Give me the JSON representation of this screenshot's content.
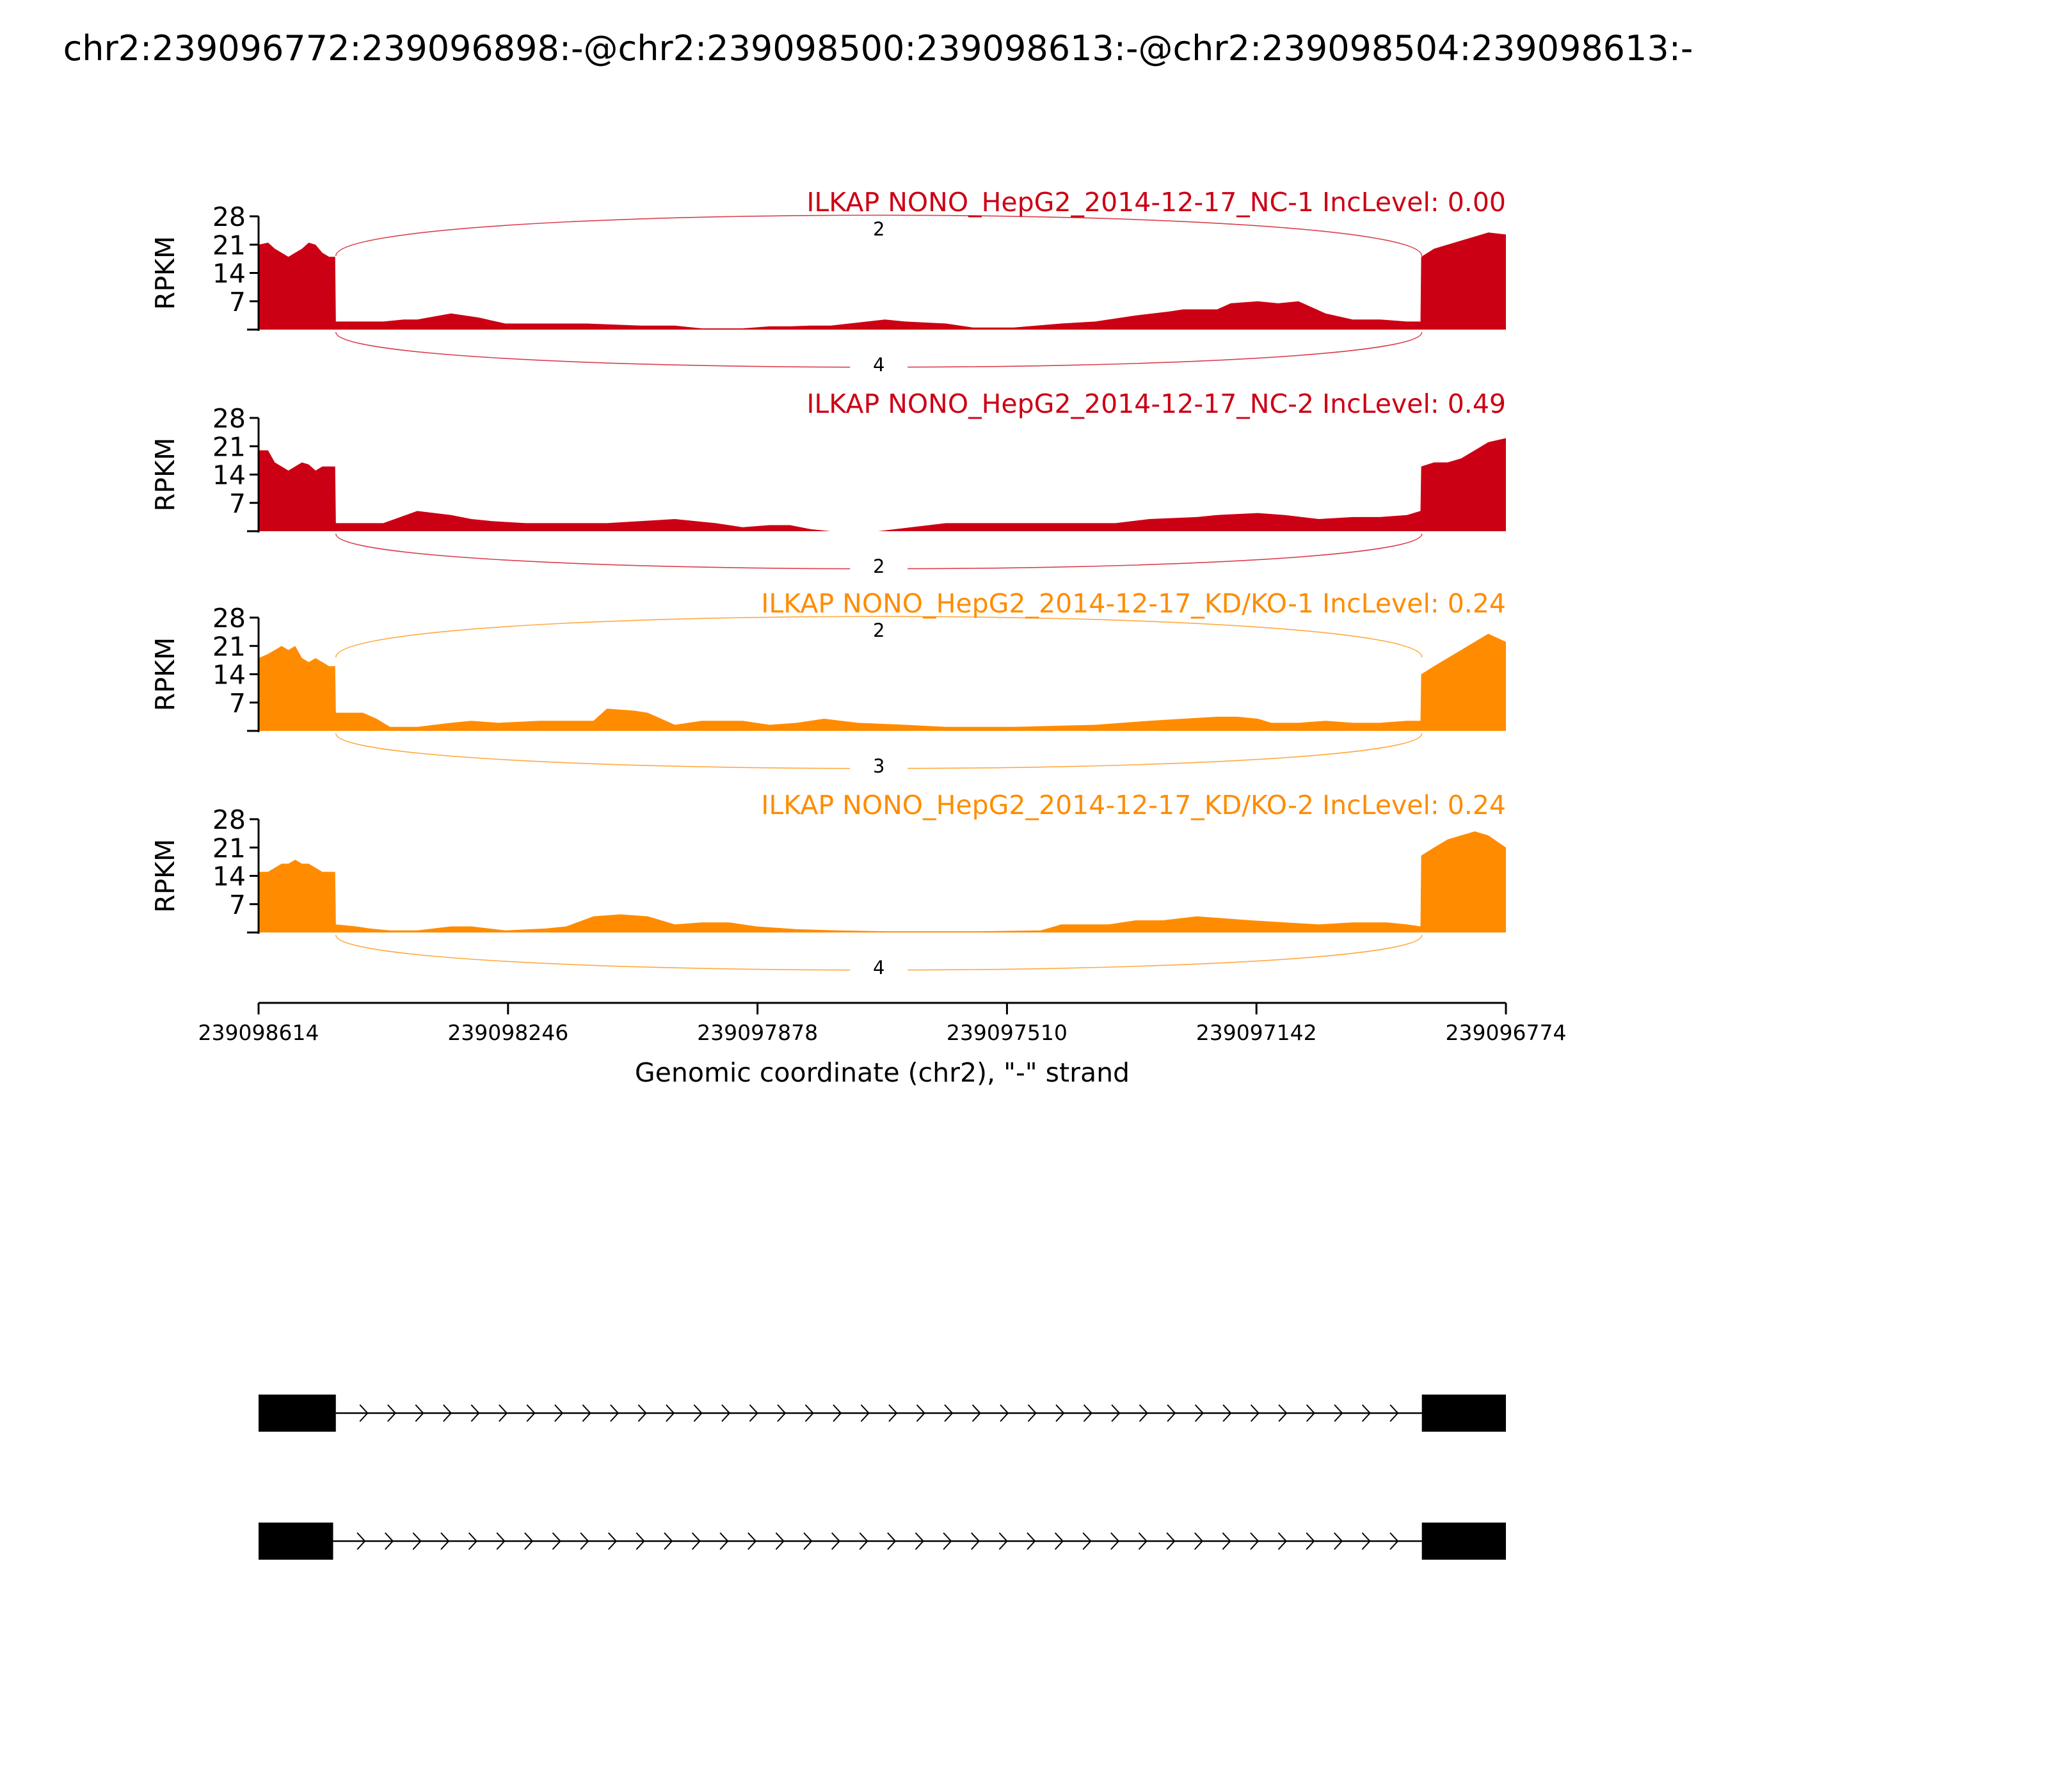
{
  "title": "chr2:239096772:239096898:-@chr2:239098500:239098613:-@chr2:239098504:239098613:-",
  "chart_data": {
    "type": "area",
    "title": "chr2:239096772:239096898:-@chr2:239098500:239098613:-@chr2:239098504:239098613:-",
    "xlabel": "Genomic coordinate (chr2), \"-\" strand",
    "ylabel": "RPKM",
    "xlim": [
      239098614,
      239096774
    ],
    "x_reversed": true,
    "x_ticks": [
      "239098614",
      "239098246",
      "239097878",
      "239097510",
      "239097142",
      "239096774"
    ],
    "y_ticks": [
      "28",
      "21",
      "14",
      "7"
    ],
    "ylim": [
      0,
      28
    ],
    "colors": {
      "NC": "#cc0014",
      "KD": "#ff8c00",
      "gene": "#000000"
    },
    "series": [
      {
        "name": "ILKAP NONO_HepG2_2014-12-17_NC-1 IncLevel: 0.00",
        "color": "#cc0014",
        "x": [
          239098614,
          239098600,
          239098590,
          239098580,
          239098570,
          239098560,
          239098550,
          239098540,
          239098530,
          239098520,
          239098510,
          239098501,
          239098500,
          239098460,
          239098430,
          239098400,
          239098380,
          239098330,
          239098310,
          239098290,
          239098250,
          239098230,
          239098200,
          239098130,
          239098050,
          239098000,
          239097960,
          239097900,
          239097860,
          239097830,
          239097800,
          239097770,
          239097690,
          239097660,
          239097600,
          239097560,
          239097500,
          239097430,
          239097380,
          239097320,
          239097270,
          239097250,
          239097200,
          239097180,
          239097140,
          239097110,
          239097080,
          239097040,
          239097000,
          239096960,
          239096920,
          239096900,
          239096899,
          239096880,
          239096860,
          239096840,
          239096820,
          239096800,
          239096774
        ],
        "values": [
          21,
          21.5,
          20,
          19,
          18,
          19,
          20,
          21.5,
          21,
          19,
          18,
          18,
          2,
          2,
          2,
          2.5,
          2.5,
          4,
          3.5,
          3,
          1.5,
          1.5,
          1.5,
          1.5,
          1,
          1,
          0.3,
          0.3,
          0.8,
          0.8,
          1,
          1,
          2.5,
          2,
          1.5,
          0.5,
          0.5,
          1.5,
          2,
          3.5,
          4.5,
          5,
          5,
          6.5,
          7,
          6.5,
          7,
          4,
          2.5,
          2.5,
          2,
          2,
          18,
          20,
          21,
          22,
          23,
          24,
          23.5
        ]
      },
      {
        "name": "ILKAP NONO_HepG2_2014-12-17_NC-2 IncLevel: 0.49",
        "color": "#cc0014",
        "x": [
          239098614,
          239098600,
          239098590,
          239098580,
          239098570,
          239098560,
          239098550,
          239098540,
          239098530,
          239098520,
          239098510,
          239098501,
          239098500,
          239098460,
          239098430,
          239098380,
          239098330,
          239098300,
          239098270,
          239098220,
          239098180,
          239098100,
          239098000,
          239097940,
          239097900,
          239097860,
          239097830,
          239097800,
          239097770,
          239097700,
          239097600,
          239097500,
          239097450,
          239097350,
          239097300,
          239097230,
          239097200,
          239097140,
          239097100,
          239097050,
          239097000,
          239096960,
          239096920,
          239096900,
          239096899,
          239096880,
          239096860,
          239096840,
          239096820,
          239096800,
          239096774
        ],
        "values": [
          20,
          20,
          17,
          16,
          15,
          16,
          17,
          16.5,
          15,
          16,
          16,
          16,
          2,
          2,
          2,
          5,
          4,
          3,
          2.5,
          2,
          2,
          2,
          3,
          2,
          1,
          1.5,
          1.5,
          0.5,
          0,
          0,
          2,
          2,
          2,
          2,
          3,
          3.5,
          4,
          4.5,
          4,
          3,
          3.5,
          3.5,
          4,
          5,
          16,
          17,
          17,
          18,
          20,
          22,
          23
        ]
      },
      {
        "name": "ILKAP NONO_HepG2_2014-12-17_KD/KO-1 IncLevel: 0.24",
        "color": "#ff8c00",
        "x": [
          239098614,
          239098600,
          239098590,
          239098580,
          239098570,
          239098560,
          239098550,
          239098540,
          239098530,
          239098520,
          239098510,
          239098501,
          239098500,
          239098460,
          239098440,
          239098420,
          239098380,
          239098330,
          239098300,
          239098260,
          239098200,
          239098120,
          239098100,
          239098060,
          239098040,
          239098000,
          239097960,
          239097900,
          239097860,
          239097820,
          239097780,
          239097730,
          239097660,
          239097600,
          239097500,
          239097380,
          239097300,
          239097250,
          239097200,
          239097170,
          239097140,
          239097120,
          239097080,
          239097040,
          239097000,
          239096960,
          239096920,
          239096900,
          239096899,
          239096880,
          239096860,
          239096840,
          239096820,
          239096800,
          239096774
        ],
        "values": [
          18,
          19,
          20,
          21,
          20,
          21,
          18,
          17,
          18,
          17,
          16,
          16,
          4.5,
          4.5,
          3,
          1,
          1,
          2,
          2.5,
          2,
          2.5,
          2.5,
          5.5,
          5,
          4.5,
          1.5,
          2.5,
          2.5,
          1.5,
          2,
          3,
          2,
          1.5,
          1,
          1,
          1.5,
          2.5,
          3,
          3.5,
          3.5,
          3,
          2,
          2,
          2.5,
          2,
          2,
          2.5,
          2.5,
          14,
          16,
          18,
          20,
          22,
          24,
          22
        ]
      },
      {
        "name": "ILKAP NONO_HepG2_2014-12-17_KD/KO-2 IncLevel: 0.24",
        "color": "#ff8c00",
        "x": [
          239098614,
          239098600,
          239098590,
          239098580,
          239098570,
          239098560,
          239098550,
          239098540,
          239098530,
          239098520,
          239098510,
          239098501,
          239098500,
          239098470,
          239098450,
          239098420,
          239098380,
          239098330,
          239098300,
          239098250,
          239098190,
          239098160,
          239098120,
          239098080,
          239098040,
          239098000,
          239097960,
          239097920,
          239097880,
          239097820,
          239097760,
          239097690,
          239097620,
          239097550,
          239097460,
          239097430,
          239097360,
          239097320,
          239097280,
          239097230,
          239097190,
          239097150,
          239097100,
          239097050,
          239097000,
          239096950,
          239096920,
          239096900,
          239096899,
          239096880,
          239096860,
          239096840,
          239096820,
          239096800,
          239096774
        ],
        "values": [
          15,
          15,
          16,
          17,
          17,
          18,
          17,
          17,
          16,
          15,
          15,
          15,
          2,
          1.5,
          1,
          0.5,
          0.5,
          1.5,
          1.5,
          0.5,
          1,
          1.5,
          4,
          4.5,
          4,
          2,
          2.5,
          2.5,
          1.5,
          0.8,
          0.5,
          0.3,
          0.3,
          0.3,
          0.5,
          2,
          2,
          3,
          3,
          4,
          3.5,
          3,
          2.5,
          2,
          2.5,
          2.5,
          2,
          1.5,
          19,
          21,
          23,
          24,
          25,
          24,
          21
        ]
      }
    ],
    "junctions": [
      {
        "panel": 0,
        "count": "2",
        "side": "top"
      },
      {
        "panel": 0,
        "count": "4",
        "side": "bottom"
      },
      {
        "panel": 1,
        "count": "2",
        "side": "bottom"
      },
      {
        "panel": 2,
        "count": "2",
        "side": "top"
      },
      {
        "panel": 2,
        "count": "3",
        "side": "bottom"
      },
      {
        "panel": 3,
        "count": "4",
        "side": "bottom"
      }
    ],
    "isoforms": [
      {
        "exons": [
          [
            239098614,
            239098500
          ],
          [
            239096898,
            239096774
          ]
        ]
      },
      {
        "exons": [
          [
            239098614,
            239098504
          ],
          [
            239096898,
            239096774
          ]
        ]
      }
    ]
  }
}
